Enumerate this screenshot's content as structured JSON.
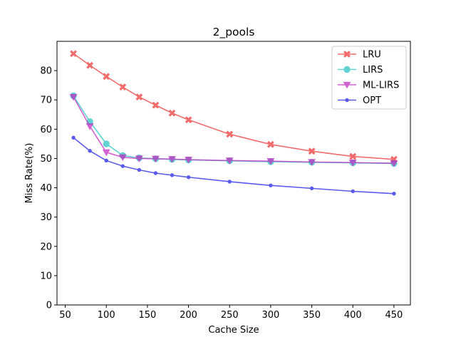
{
  "chart_data": {
    "type": "line",
    "title": "2_pools",
    "xlabel": "Cache Size",
    "ylabel": "Miss Rate(%)",
    "xlim": [
      40,
      470
    ],
    "ylim": [
      0,
      90
    ],
    "xticks": [
      50,
      100,
      150,
      200,
      250,
      300,
      350,
      400,
      450
    ],
    "yticks": [
      0,
      10,
      20,
      30,
      40,
      50,
      60,
      70,
      80
    ],
    "legend_position": "top-right",
    "grid": false,
    "x": [
      60,
      80,
      100,
      120,
      140,
      160,
      180,
      200,
      250,
      300,
      350,
      400,
      450
    ],
    "series": [
      {
        "name": "LRU",
        "color": "#ee3b3b",
        "marker": "x-filled",
        "values": [
          85.8,
          81.8,
          78.0,
          74.4,
          71.0,
          68.2,
          65.5,
          63.2,
          58.3,
          54.8,
          52.5,
          50.7,
          49.7
        ]
      },
      {
        "name": "LIRS",
        "color": "#2ec4c4",
        "marker": "circle",
        "values": [
          71.4,
          62.6,
          55.0,
          51.0,
          50.2,
          49.9,
          49.7,
          49.5,
          49.2,
          48.9,
          48.7,
          48.5,
          48.3
        ]
      },
      {
        "name": "ML-LIRS",
        "color": "#c32fc3",
        "marker": "triangle-down",
        "values": [
          71.0,
          61.0,
          52.1,
          50.4,
          50.0,
          49.9,
          49.8,
          49.6,
          49.3,
          49.1,
          48.8,
          48.6,
          48.4
        ]
      },
      {
        "name": "OPT",
        "color": "#2323e6",
        "marker": "point",
        "values": [
          57.1,
          52.6,
          49.3,
          47.4,
          46.1,
          45.0,
          44.3,
          43.6,
          42.1,
          40.8,
          39.8,
          38.8,
          38.0
        ]
      }
    ]
  }
}
